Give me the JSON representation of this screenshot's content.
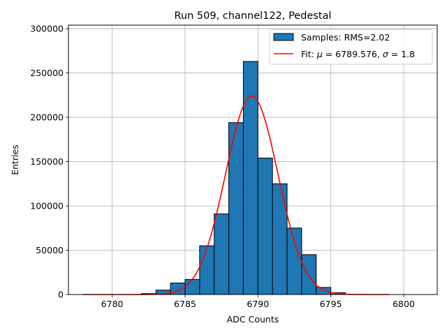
{
  "chart_data": {
    "type": "bar",
    "title": "Run 509, channel122, Pedestal",
    "xlabel": "ADC Counts",
    "ylabel": "Entries",
    "xlim": [
      6777,
      6802.3
    ],
    "ylim": [
      0,
      304000
    ],
    "xticks": [
      6780,
      6785,
      6790,
      6795,
      6800
    ],
    "yticks": [
      0,
      50000,
      100000,
      150000,
      200000,
      250000,
      300000
    ],
    "grid": true,
    "legend_position": "top-right",
    "series": [
      {
        "name": "Samples: RMS=2.02",
        "kind": "histogram",
        "color": "#1f77b4",
        "edgecolor": "#000000",
        "bin_width": 1,
        "bins": [
          6778,
          6779,
          6780,
          6781,
          6782,
          6783,
          6784,
          6785,
          6786,
          6787,
          6788,
          6789,
          6790,
          6791,
          6792,
          6793,
          6794,
          6795,
          6796,
          6797,
          6798
        ],
        "values": [
          0,
          0,
          0,
          0,
          1000,
          5000,
          13000,
          17000,
          55000,
          91000,
          194000,
          263000,
          154000,
          125000,
          75000,
          45000,
          8000,
          2000,
          0,
          0,
          0
        ]
      },
      {
        "name": "Fit: $\\mu$ = 6789.576, $\\sigma$ = 1.8",
        "kind": "gaussian",
        "color": "#ff0000",
        "mu": 6789.576,
        "sigma": 1.8,
        "amplitude": 224000,
        "x_range": [
          6778,
          6799
        ]
      }
    ]
  }
}
